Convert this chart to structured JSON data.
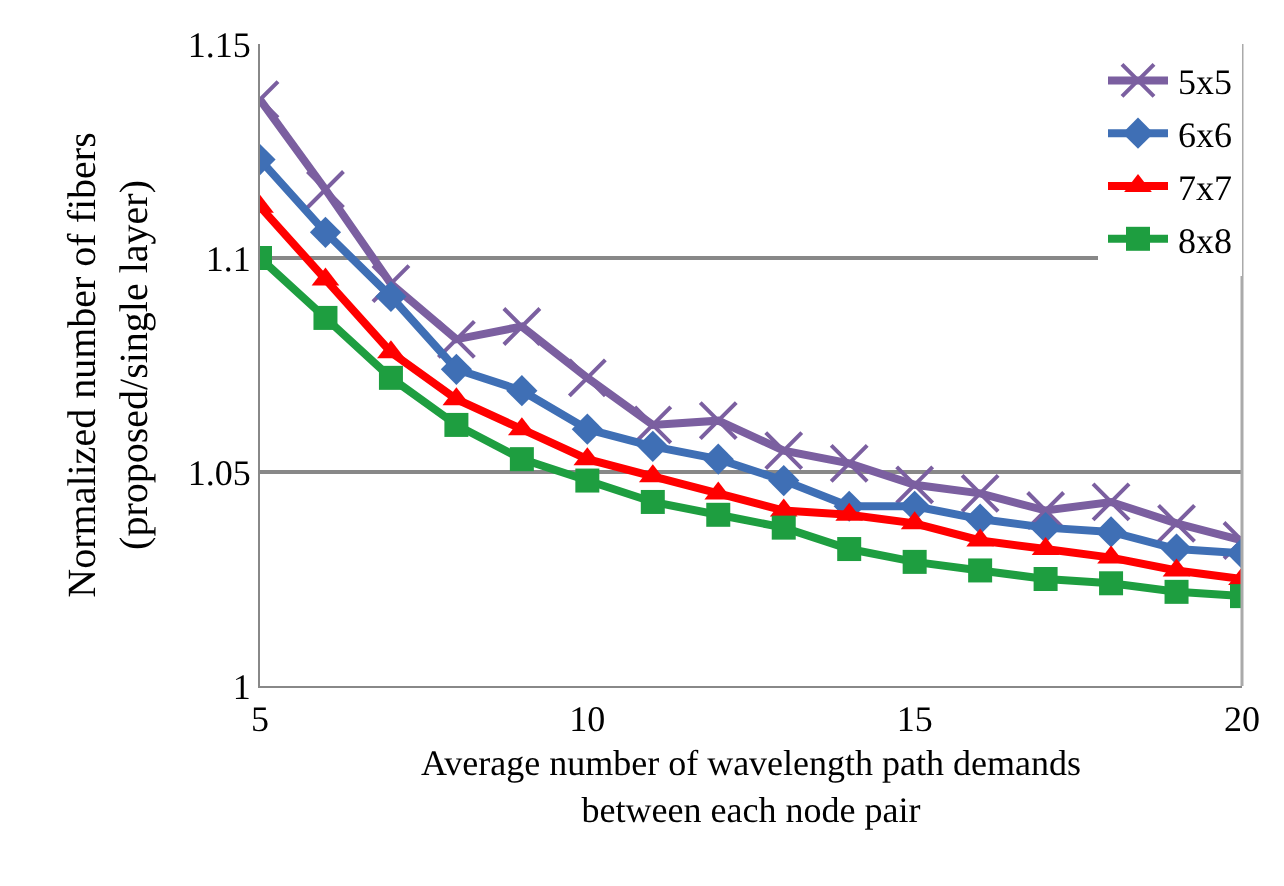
{
  "chart_data": {
    "type": "line",
    "xlabel": "Average number of wavelength path demands\nbetween each node pair",
    "ylabel": "Normalized number of fibers\n(proposed/single layer)",
    "x": [
      5,
      6,
      7,
      8,
      9,
      10,
      11,
      12,
      13,
      14,
      15,
      16,
      17,
      18,
      19,
      20
    ],
    "series": [
      {
        "name": "5x5",
        "color": "#7b5fa0",
        "marker": "cross",
        "values": [
          1.137,
          1.116,
          1.094,
          1.081,
          1.084,
          1.072,
          1.061,
          1.062,
          1.055,
          1.052,
          1.047,
          1.045,
          1.041,
          1.043,
          1.038,
          1.034
        ]
      },
      {
        "name": "6x6",
        "color": "#3f6fb5",
        "marker": "diamond",
        "values": [
          1.123,
          1.106,
          1.091,
          1.074,
          1.069,
          1.06,
          1.056,
          1.053,
          1.048,
          1.042,
          1.042,
          1.039,
          1.037,
          1.036,
          1.032,
          1.031
        ]
      },
      {
        "name": "7x7",
        "color": "#ff0000",
        "marker": "triangle",
        "values": [
          1.112,
          1.095,
          1.078,
          1.067,
          1.06,
          1.053,
          1.049,
          1.045,
          1.041,
          1.04,
          1.038,
          1.034,
          1.032,
          1.03,
          1.027,
          1.025
        ]
      },
      {
        "name": "8x8",
        "color": "#1e9e40",
        "marker": "square",
        "values": [
          1.1,
          1.086,
          1.072,
          1.061,
          1.053,
          1.048,
          1.043,
          1.04,
          1.037,
          1.032,
          1.029,
          1.027,
          1.025,
          1.024,
          1.022,
          1.021
        ]
      }
    ],
    "xlim": [
      5,
      20
    ],
    "xticks": [
      5,
      10,
      15,
      20
    ],
    "ylim": [
      1,
      1.15
    ],
    "yticks": [
      1,
      1.05,
      1.1,
      1.15
    ],
    "grid": "y",
    "legend": "top right",
    "line_style": "solid"
  }
}
